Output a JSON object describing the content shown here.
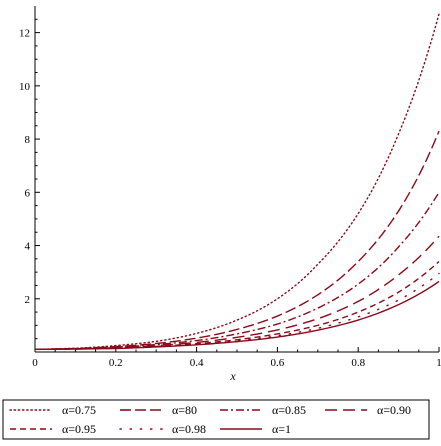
{
  "chart_data": {
    "type": "line",
    "xlabel": "x",
    "ylabel": "",
    "xlim": [
      0,
      1
    ],
    "ylim": [
      0,
      13
    ],
    "grid": false,
    "legend_position": "bottom",
    "xticks": [
      0,
      0.2,
      0.4,
      0.6,
      0.8,
      1
    ],
    "xtick_labels": [
      "0",
      "0.2",
      "0.4",
      "0.6",
      "0.8",
      "1"
    ],
    "yticks": [
      2,
      4,
      6,
      8,
      10,
      12
    ],
    "ytick_labels": [
      "2",
      "4",
      "6",
      "8",
      "10",
      "12"
    ],
    "colors": {
      "line": "#8b0a1a",
      "axis": "#000000"
    },
    "x": [
      0,
      0.1,
      0.2,
      0.3,
      0.4,
      0.5,
      0.6,
      0.7,
      0.8,
      0.9,
      1.0
    ],
    "series": [
      {
        "name": "α=0.75",
        "dash": "dotted",
        "values": [
          0.1,
          0.14,
          0.24,
          0.4,
          0.7,
          1.2,
          2.0,
          3.3,
          5.2,
          8.2,
          12.7
        ]
      },
      {
        "name": "α=80",
        "dash": "longdash",
        "values": [
          0.1,
          0.13,
          0.2,
          0.32,
          0.52,
          0.85,
          1.35,
          2.15,
          3.4,
          5.3,
          8.3
        ]
      },
      {
        "name": "α=0.85",
        "dash": "dashdot",
        "values": [
          0.1,
          0.12,
          0.18,
          0.28,
          0.43,
          0.68,
          1.05,
          1.65,
          2.55,
          3.95,
          6.0
        ]
      },
      {
        "name": "α=0.90",
        "dash": "spacedlongdash",
        "values": [
          0.1,
          0.12,
          0.16,
          0.24,
          0.36,
          0.55,
          0.83,
          1.25,
          1.9,
          2.9,
          4.35
        ]
      },
      {
        "name": "α=0.95",
        "dash": "dash",
        "values": [
          0.1,
          0.11,
          0.15,
          0.21,
          0.31,
          0.46,
          0.68,
          1.0,
          1.5,
          2.25,
          3.4
        ]
      },
      {
        "name": "α=0.98",
        "dash": "sparsedot",
        "values": [
          0.1,
          0.11,
          0.14,
          0.2,
          0.29,
          0.42,
          0.61,
          0.89,
          1.32,
          1.95,
          2.95
        ]
      },
      {
        "name": "α=1",
        "dash": "solid",
        "values": [
          0.1,
          0.11,
          0.13,
          0.19,
          0.27,
          0.39,
          0.56,
          0.82,
          1.2,
          1.78,
          2.65
        ]
      }
    ]
  }
}
